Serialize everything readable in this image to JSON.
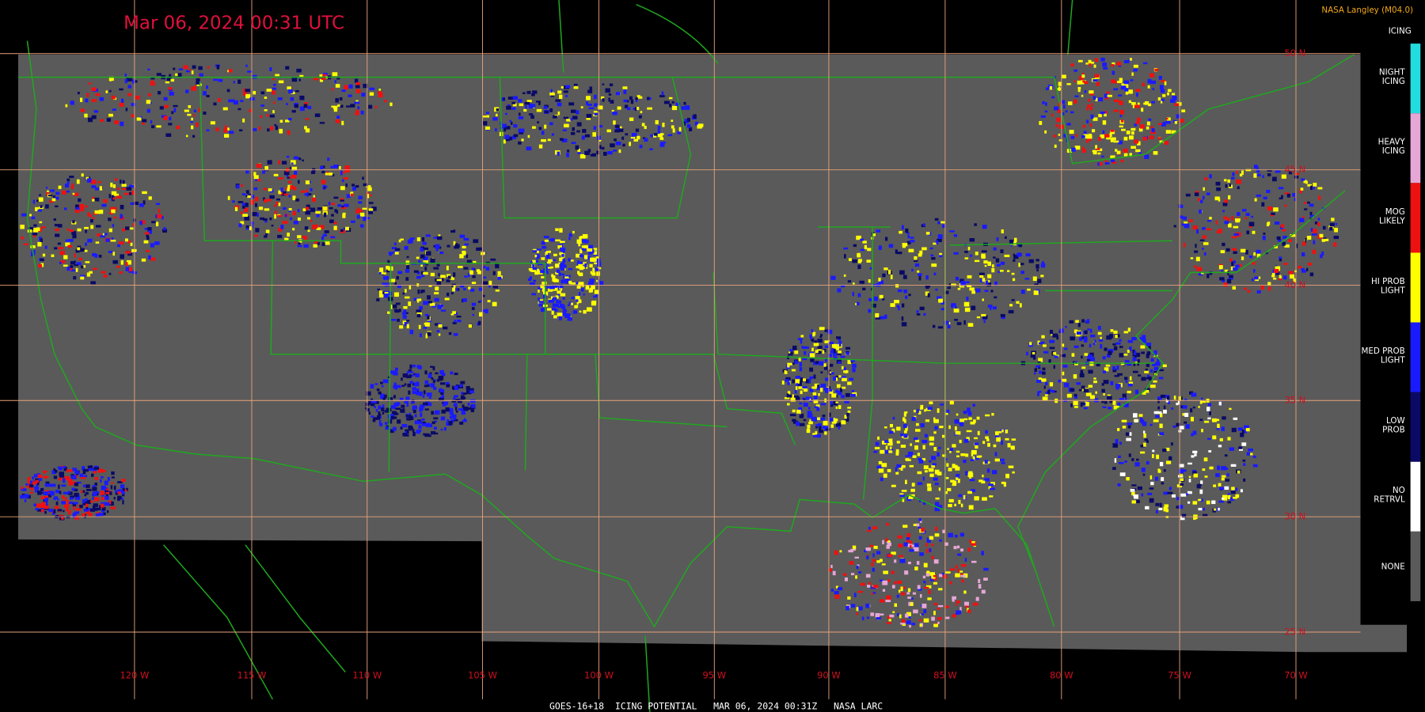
{
  "header": {
    "title": "Mar 06, 2024 00:31 UTC",
    "source": "NASA Langley (M04.0)",
    "footer": "GOES-16+18  ICING POTENTIAL   MAR 06, 2024 00:31Z   NASA LARC"
  },
  "legend": {
    "title": "ICING",
    "items": [
      {
        "lines": [
          "NIGHT",
          "ICING"
        ],
        "color": "#22dde0"
      },
      {
        "lines": [
          "HEAVY",
          "ICING"
        ],
        "color": "#e6a6d6"
      },
      {
        "lines": [
          "MOG",
          "LIKELY"
        ],
        "color": "#ee1111"
      },
      {
        "lines": [
          "HI PROB",
          "LIGHT"
        ],
        "color": "#ffff00"
      },
      {
        "lines": [
          "MED PROB",
          "LIGHT"
        ],
        "color": "#1a1aff"
      },
      {
        "lines": [
          "LOW",
          "PROB"
        ],
        "color": "#0a0a66"
      },
      {
        "lines": [
          "NO",
          "RETRVL"
        ],
        "color": "#ffffff"
      },
      {
        "lines": [
          "NONE"
        ],
        "color": "#5a5a5a"
      }
    ]
  },
  "longitude_labels": [
    "120 W",
    "115 W",
    "110 W",
    "105 W",
    "100 W",
    "95 W",
    "90 W",
    "85 W",
    "80 W",
    "75 W",
    "70 W"
  ],
  "latitude_labels": [
    "50 N",
    "45 N",
    "40 N",
    "35 N",
    "30 N",
    "25 N"
  ]
}
